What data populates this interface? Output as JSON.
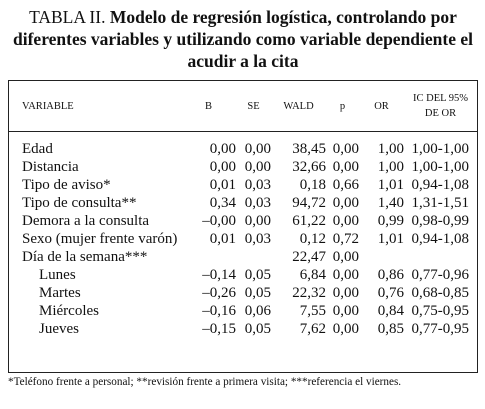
{
  "title": {
    "label": "TABLA II.",
    "text": "Modelo de regresión logística, controlando por diferentes variables y utilizando como variable dependiente el acudir a la cita"
  },
  "table": {
    "header": [
      "VARIABLE",
      "B",
      "SE",
      "WALD",
      "p",
      "OR",
      "IC DEL 95% DE OR"
    ],
    "rows": [
      [
        "Edad",
        "0,00",
        "0,00",
        "38,45",
        "0,00",
        "1,00",
        "1,00-1,00"
      ],
      [
        "Distancia",
        "0,00",
        "0,00",
        "32,66",
        "0,00",
        "1,00",
        "1,00-1,00"
      ],
      [
        "Tipo de aviso*",
        "0,01",
        "0,03",
        "0,18",
        "0,66",
        "1,01",
        "0,94-1,08"
      ],
      [
        "Tipo de consulta**",
        "0,34",
        "0,03",
        "94,72",
        "0,00",
        "1,40",
        "1,31-1,51"
      ],
      [
        "Demora a la consulta",
        "–0,00",
        "0,00",
        "61,22",
        "0,00",
        "0,99",
        "0,98-0,99"
      ],
      [
        "Sexo (mujer frente varón)",
        "0,01",
        "0,03",
        "0,12",
        "0,72",
        "1,01",
        "0,94-1,08"
      ],
      [
        "Día de la semana***",
        null,
        null,
        "22,47",
        "0,00",
        null,
        null
      ],
      [
        "Lunes",
        "–0,14",
        "0,05",
        "6,84",
        "0,00",
        "0,86",
        "0,77-0,96"
      ],
      [
        "Martes",
        "–0,26",
        "0,05",
        "22,32",
        "0,00",
        "0,76",
        "0,68-0,85"
      ],
      [
        "Miércoles",
        "–0,16",
        "0,06",
        "7,55",
        "0,00",
        "0,84",
        "0,75-0,95"
      ],
      [
        "Jueves",
        "–0,15",
        "0,05",
        "7,62",
        "0,00",
        "0,85",
        "0,77-0,95"
      ]
    ]
  },
  "footnote": "*Teléfono frente a personal; **revisión frente a primera visita; ***referencia el viernes."
}
